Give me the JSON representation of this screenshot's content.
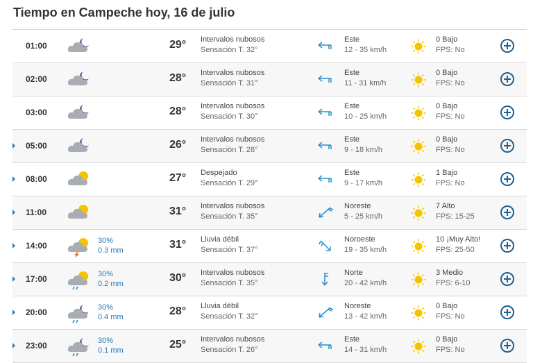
{
  "page": {
    "title": "Tiempo en Campeche hoy, 16 de julio"
  },
  "colors": {
    "accent": "#2a7ab8",
    "plus": "#1f5f8f",
    "sun": "#f5c400",
    "cloud": "#a8adb3",
    "moon": "#6a5a9a",
    "wind": "#2a8ec9"
  },
  "rows": [
    {
      "hour": "01:00",
      "expandable": false,
      "icon": "night-cloudy-icon",
      "precip_pct": "",
      "precip_mm": "",
      "temp": "29°",
      "desc": "Intervalos nubosos",
      "feels": "Sensación T. 32°",
      "wind_icon": "wind-arrow-west-icon",
      "wind_dir": "Este",
      "wind_speed": "12 - 35 km/h",
      "uv": "0 Bajo",
      "fps": "FPS: No"
    },
    {
      "hour": "02:00",
      "expandable": false,
      "icon": "night-cloudy-icon",
      "precip_pct": "",
      "precip_mm": "",
      "temp": "28°",
      "desc": "Intervalos nubosos",
      "feels": "Sensación T. 31°",
      "wind_icon": "wind-arrow-west-icon",
      "wind_dir": "Este",
      "wind_speed": "11 - 31 km/h",
      "uv": "0 Bajo",
      "fps": "FPS: No"
    },
    {
      "hour": "03:00",
      "expandable": false,
      "icon": "night-cloudy-icon",
      "precip_pct": "",
      "precip_mm": "",
      "temp": "28°",
      "desc": "Intervalos nubosos",
      "feels": "Sensación T. 30°",
      "wind_icon": "wind-arrow-west-icon",
      "wind_dir": "Este",
      "wind_speed": "10 - 25 km/h",
      "uv": "0 Bajo",
      "fps": "FPS: No"
    },
    {
      "hour": "05:00",
      "expandable": true,
      "icon": "night-cloudy-icon",
      "precip_pct": "",
      "precip_mm": "",
      "temp": "26°",
      "desc": "Intervalos nubosos",
      "feels": "Sensación T. 28°",
      "wind_icon": "wind-arrow-west-icon",
      "wind_dir": "Este",
      "wind_speed": "9 - 18 km/h",
      "uv": "0 Bajo",
      "fps": "FPS: No"
    },
    {
      "hour": "08:00",
      "expandable": true,
      "icon": "sun-cloud-icon",
      "precip_pct": "",
      "precip_mm": "",
      "temp": "27°",
      "desc": "Despejado",
      "feels": "Sensación T. 29°",
      "wind_icon": "wind-arrow-west-icon",
      "wind_dir": "Este",
      "wind_speed": "9 - 17 km/h",
      "uv": "1 Bajo",
      "fps": "FPS: No"
    },
    {
      "hour": "11:00",
      "expandable": true,
      "icon": "sun-cloud-icon",
      "precip_pct": "",
      "precip_mm": "",
      "temp": "31°",
      "desc": "Intervalos nubosos",
      "feels": "Sensación T. 35°",
      "wind_icon": "wind-arrow-southwest-icon",
      "wind_dir": "Noreste",
      "wind_speed": "5 - 25 km/h",
      "uv": "7 Alto",
      "fps": "FPS: 15-25"
    },
    {
      "hour": "14:00",
      "expandable": true,
      "icon": "sun-cloud-storm-icon",
      "precip_pct": "30%",
      "precip_mm": "0.3 mm",
      "temp": "31°",
      "desc": "Lluvia débil",
      "feels": "Sensación T. 37°",
      "wind_icon": "wind-arrow-southeast-icon",
      "wind_dir": "Noroeste",
      "wind_speed": "19 - 35 km/h",
      "uv": "10 ¡Muy Alto!",
      "fps": "FPS: 25-50"
    },
    {
      "hour": "17:00",
      "expandable": true,
      "icon": "sun-cloud-rain-icon",
      "precip_pct": "30%",
      "precip_mm": "0.2 mm",
      "temp": "30°",
      "desc": "Intervalos nubosos",
      "feels": "Sensación T. 35°",
      "wind_icon": "wind-arrow-south-icon",
      "wind_dir": "Norte",
      "wind_speed": "20 - 42 km/h",
      "uv": "3 Medio",
      "fps": "FPS: 6-10"
    },
    {
      "hour": "20:00",
      "expandable": true,
      "icon": "night-cloud-rain-icon",
      "precip_pct": "30%",
      "precip_mm": "0.4 mm",
      "temp": "28°",
      "desc": "Lluvia débil",
      "feels": "Sensación T. 32°",
      "wind_icon": "wind-arrow-southwest-icon",
      "wind_dir": "Noreste",
      "wind_speed": "13 - 42 km/h",
      "uv": "0 Bajo",
      "fps": "FPS: No"
    },
    {
      "hour": "23:00",
      "expandable": true,
      "icon": "night-cloud-rain-icon",
      "precip_pct": "30%",
      "precip_mm": "0.1 mm",
      "temp": "25°",
      "desc": "Intervalos nubosos",
      "feels": "Sensación T. 26°",
      "wind_icon": "wind-arrow-west-icon",
      "wind_dir": "Este",
      "wind_speed": "14 - 31 km/h",
      "uv": "0 Bajo",
      "fps": "FPS: No"
    }
  ]
}
